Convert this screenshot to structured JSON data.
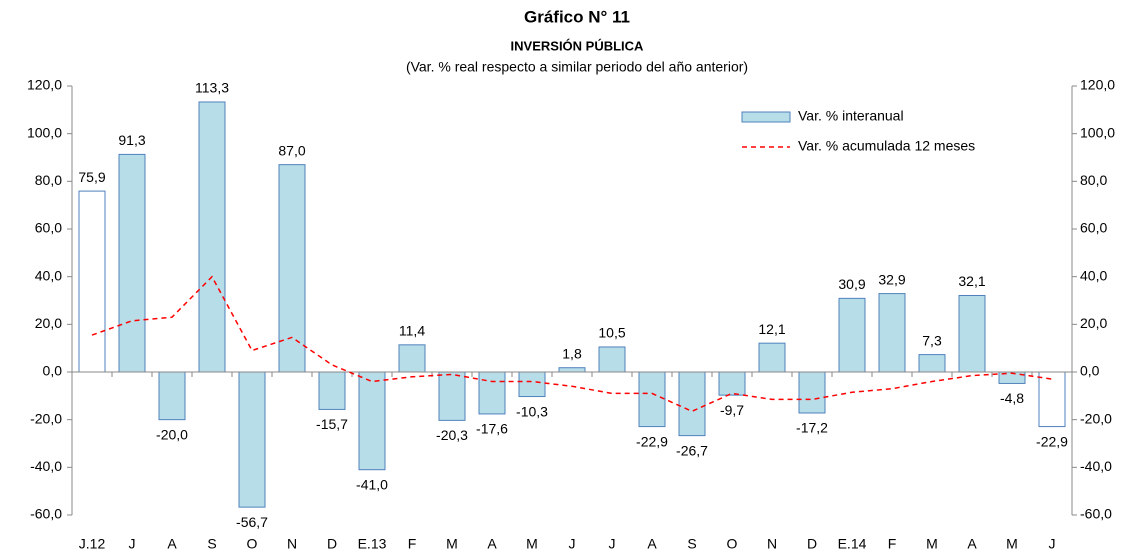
{
  "chart_data": {
    "type": "bar-line",
    "title": "Gráfico N° 11",
    "subtitle": "INVERSIÓN PÚBLICA",
    "note": "(Var. % real respecto a similar periodo del año anterior)",
    "categories": [
      "J.12",
      "J",
      "A",
      "S",
      "O",
      "N",
      "D",
      "E.13",
      "F",
      "M",
      "A",
      "M",
      "J",
      "J",
      "A",
      "S",
      "O",
      "N",
      "D",
      "E.14",
      "F",
      "M",
      "A",
      "M",
      "J"
    ],
    "series": [
      {
        "name": "Var. % interanual",
        "type": "bar",
        "color": "#b7dde8",
        "edge_color": "#4f81bd",
        "colors": [
          "#ffffff",
          "#b7dde8",
          "#b7dde8",
          "#b7dde8",
          "#b7dde8",
          "#b7dde8",
          "#b7dde8",
          "#b7dde8",
          "#b7dde8",
          "#b7dde8",
          "#b7dde8",
          "#b7dde8",
          "#b7dde8",
          "#b7dde8",
          "#b7dde8",
          "#b7dde8",
          "#b7dde8",
          "#b7dde8",
          "#b7dde8",
          "#b7dde8",
          "#b7dde8",
          "#b7dde8",
          "#b7dde8",
          "#b7dde8",
          "#ffffff"
        ],
        "values": [
          75.9,
          91.3,
          -20.0,
          113.3,
          -56.7,
          87.0,
          -15.7,
          -41.0,
          11.4,
          -20.3,
          -17.6,
          -10.3,
          1.8,
          10.5,
          -22.9,
          -26.7,
          -9.7,
          12.1,
          -17.2,
          30.9,
          32.9,
          7.3,
          32.1,
          -4.8,
          -22.9
        ],
        "value_labels": [
          "75,9",
          "91,3",
          "-20,0",
          "113,3",
          "-56,7",
          "87,0",
          "-15,7",
          "-41,0",
          "11,4",
          "-20,3",
          "-17,6",
          "-10,3",
          "1,8",
          "10,5",
          "-22,9",
          "-26,7",
          "-9,7",
          "12,1",
          "-17,2",
          "30,9",
          "32,9",
          "7,3",
          "32,1",
          "-4,8",
          "-22,9"
        ]
      },
      {
        "name": "Var. % acumulada 12 meses",
        "type": "line",
        "color": "#ff0000",
        "dashed": true,
        "values": [
          15.5,
          21.5,
          23,
          40,
          9,
          14.5,
          3,
          -4,
          -2,
          -1,
          -4,
          -4,
          -6,
          -9,
          -9,
          -16.5,
          -9,
          -11.5,
          -11.5,
          -8.5,
          -7,
          -4,
          -1.5,
          -0.5,
          -3
        ]
      }
    ],
    "ylim": [
      -60,
      120
    ],
    "yticks": [
      {
        "value": -60,
        "label": "-60,0"
      },
      {
        "value": -40,
        "label": "-40,0"
      },
      {
        "value": -20,
        "label": "-20,0"
      },
      {
        "value": 0,
        "label": "0,0"
      },
      {
        "value": 20,
        "label": "20,0"
      },
      {
        "value": 40,
        "label": "40,0"
      },
      {
        "value": 60,
        "label": "60,0"
      },
      {
        "value": 80,
        "label": "80,0"
      },
      {
        "value": 100,
        "label": "100,0"
      },
      {
        "value": 120,
        "label": "120,0"
      }
    ],
    "y2lim": [
      -60,
      120
    ],
    "y2ticks": [
      {
        "value": -60,
        "label": "-60,0"
      },
      {
        "value": -40,
        "label": "-40,0"
      },
      {
        "value": -20,
        "label": "-20,0"
      },
      {
        "value": 0,
        "label": "0,0"
      },
      {
        "value": 20,
        "label": "20,0"
      },
      {
        "value": 40,
        "label": "40,0"
      },
      {
        "value": 60,
        "label": "60,0"
      },
      {
        "value": 80,
        "label": "80,0"
      },
      {
        "value": 100,
        "label": "100,0"
      },
      {
        "value": 120,
        "label": "120,0"
      }
    ],
    "legend": "top-right"
  }
}
